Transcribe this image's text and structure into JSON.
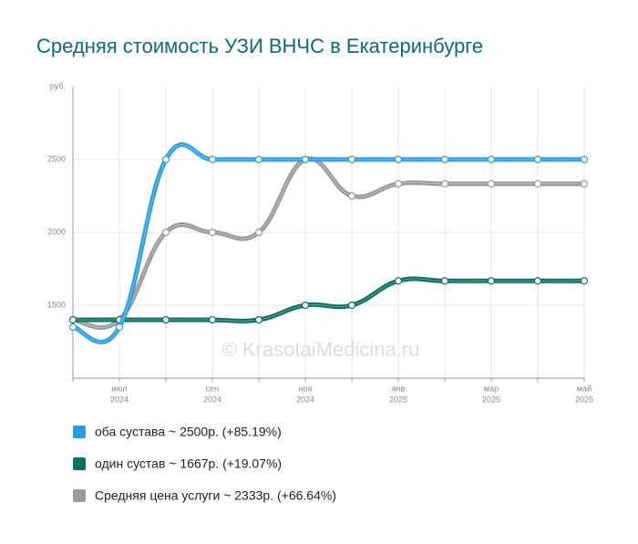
{
  "chart_data": {
    "type": "line",
    "title": "Средняя стоимость УЗИ ВНЧС в Екатеринбурге",
    "y_unit": "руб.",
    "watermark": "© KrasotaiMedicina.ru",
    "categories": [
      null,
      {
        "month": "июл",
        "year": "2024"
      },
      null,
      {
        "month": "сен",
        "year": "2024"
      },
      null,
      {
        "month": "ноя",
        "year": "2024"
      },
      null,
      {
        "month": "янв",
        "year": "2025"
      },
      null,
      {
        "month": "мар",
        "year": "2025"
      },
      null,
      {
        "month": "май",
        "year": "2025"
      }
    ],
    "ylim": [
      1000,
      3000
    ],
    "yticks": [
      1500,
      2000,
      2500
    ],
    "grid": true,
    "series": [
      {
        "name": "оба сустава ~ 2500р. (+85.19%)",
        "color": "#2a9fe0",
        "values": [
          1350,
          1350,
          2500,
          2500,
          2500,
          2500,
          2500,
          2500,
          2500,
          2500,
          2500,
          2500
        ]
      },
      {
        "name": "один сустав ~ 1667р. (+19.07%)",
        "color": "#0d6e63",
        "values": [
          1400,
          1400,
          1400,
          1400,
          1400,
          1500,
          1500,
          1667,
          1667,
          1667,
          1667,
          1667
        ]
      },
      {
        "name": "Средняя цена услуги ~ 2333р. (+66.64%)",
        "color": "#9a9a9a",
        "values": [
          1400,
          1400,
          2000,
          2000,
          2000,
          2500,
          2250,
          2333,
          2333,
          2333,
          2333,
          2333
        ]
      }
    ]
  }
}
